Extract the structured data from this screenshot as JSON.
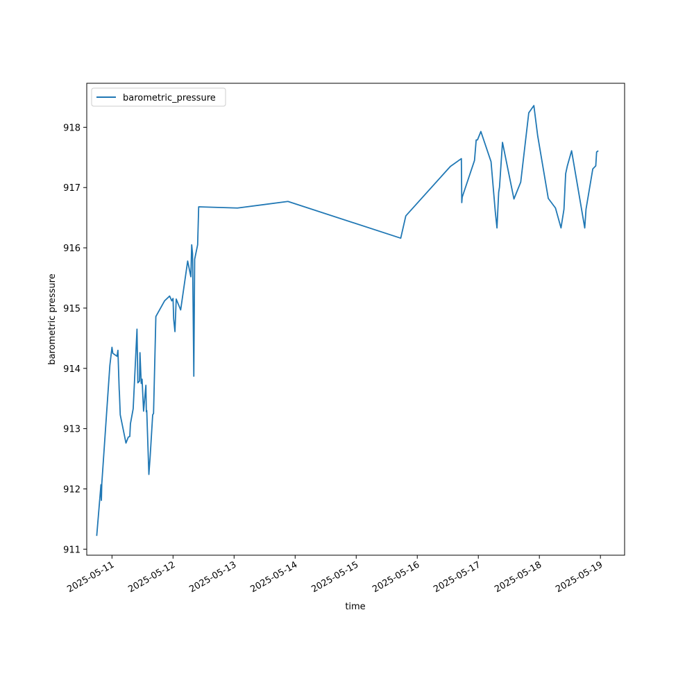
{
  "chart_data": {
    "type": "line",
    "xlabel": "time",
    "ylabel": "barometric pressure",
    "x_is_date": true,
    "xlim": [
      "2025-05-10T14:05",
      "2025-05-19T09:30"
    ],
    "ylim": [
      910.9,
      918.73
    ],
    "x_ticks": [
      "2025-05-11",
      "2025-05-12",
      "2025-05-13",
      "2025-05-14",
      "2025-05-15",
      "2025-05-16",
      "2025-05-17",
      "2025-05-18",
      "2025-05-19"
    ],
    "y_ticks": [
      911,
      912,
      913,
      914,
      915,
      916,
      917,
      918
    ],
    "legend": {
      "position": "upper left",
      "entries": [
        "barometric_pressure"
      ]
    },
    "grid": false,
    "color": "#1f77b4",
    "series": [
      {
        "name": "barometric_pressure",
        "x": [
          "2025-05-10T18:00",
          "2025-05-10T19:40",
          "2025-05-10T19:50",
          "2025-05-10T20:00",
          "2025-05-10T23:10",
          "2025-05-11T00:00",
          "2025-05-11T00:20",
          "2025-05-11T02:00",
          "2025-05-11T02:20",
          "2025-05-11T02:50",
          "2025-05-11T02:55",
          "2025-05-11T03:15",
          "2025-05-11T05:30",
          "2025-05-11T06:25",
          "2025-05-11T07:00",
          "2025-05-11T07:15",
          "2025-05-11T08:20",
          "2025-05-11T09:50",
          "2025-05-11T10:10",
          "2025-05-11T10:50",
          "2025-05-11T11:00",
          "2025-05-11T11:30",
          "2025-05-11T11:50",
          "2025-05-11T12:25",
          "2025-05-11T13:20",
          "2025-05-11T13:30",
          "2025-05-11T13:40",
          "2025-05-11T14:30",
          "2025-05-11T15:00",
          "2025-05-11T16:00",
          "2025-05-11T16:20",
          "2025-05-11T17:15",
          "2025-05-11T20:40",
          "2025-05-11T22:40",
          "2025-05-11T23:30",
          "2025-05-12T00:00",
          "2025-05-12T00:15",
          "2025-05-12T00:45",
          "2025-05-12T01:15",
          "2025-05-12T03:00",
          "2025-05-12T05:45",
          "2025-05-12T07:00",
          "2025-05-12T07:20",
          "2025-05-12T07:40",
          "2025-05-12T07:55",
          "2025-05-12T08:10",
          "2025-05-12T08:30",
          "2025-05-12T09:40",
          "2025-05-12T10:05",
          "2025-05-13T01:20",
          "2025-05-13T21:10",
          "2025-05-15T17:30",
          "2025-05-15T19:30",
          "2025-05-16T13:00",
          "2025-05-16T17:20",
          "2025-05-16T17:30",
          "2025-05-16T17:40",
          "2025-05-16T22:30",
          "2025-05-16T23:10",
          "2025-05-16T23:40",
          "2025-05-17T01:00",
          "2025-05-17T05:00",
          "2025-05-17T06:40",
          "2025-05-17T07:20",
          "2025-05-17T08:00",
          "2025-05-17T08:20",
          "2025-05-17T09:30",
          "2025-05-17T14:00",
          "2025-05-17T16:40",
          "2025-05-17T19:50",
          "2025-05-17T21:50",
          "2025-05-17T23:20",
          "2025-05-18T03:30",
          "2025-05-18T06:20",
          "2025-05-18T08:30",
          "2025-05-18T09:40",
          "2025-05-18T10:20",
          "2025-05-18T11:00",
          "2025-05-18T12:40",
          "2025-05-18T17:50",
          "2025-05-18T18:20",
          "2025-05-18T21:00",
          "2025-05-18T22:10",
          "2025-05-18T22:30",
          "2025-05-18T23:10"
        ],
        "values": [
          911.22,
          912.07,
          911.81,
          912.09,
          914.05,
          914.35,
          914.25,
          914.2,
          914.3,
          913.65,
          913.6,
          913.23,
          912.76,
          912.86,
          912.87,
          913.08,
          913.33,
          914.65,
          913.76,
          913.79,
          914.26,
          913.75,
          913.82,
          913.29,
          913.72,
          913.28,
          913.3,
          912.24,
          912.53,
          913.23,
          913.25,
          914.86,
          915.12,
          915.2,
          915.12,
          915.16,
          914.82,
          914.61,
          915.15,
          914.97,
          915.78,
          915.52,
          916.05,
          915.9,
          914.92,
          913.87,
          915.81,
          916.05,
          916.68,
          916.66,
          916.77,
          916.16,
          916.53,
          917.35,
          917.48,
          916.75,
          916.84,
          917.45,
          917.79,
          917.79,
          917.93,
          917.43,
          916.6,
          916.33,
          916.92,
          917.01,
          917.75,
          916.81,
          917.09,
          918.24,
          918.36,
          917.86,
          916.82,
          916.66,
          916.33,
          916.64,
          917.23,
          917.36,
          917.61,
          916.33,
          916.64,
          917.31,
          917.36,
          917.59,
          917.61
        ]
      }
    ]
  }
}
